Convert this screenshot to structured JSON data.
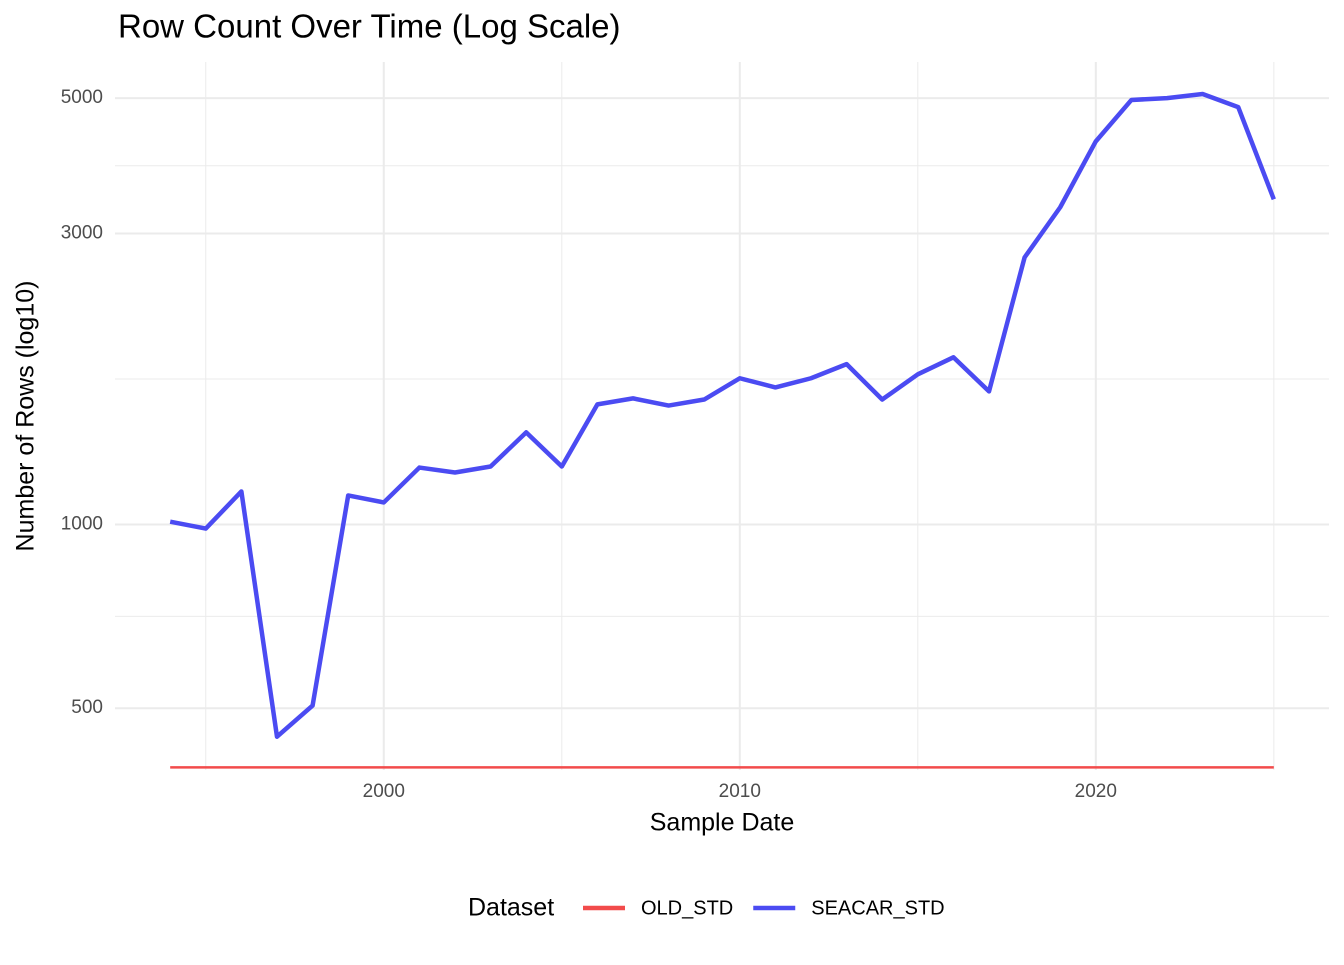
{
  "chart_data": {
    "type": "line",
    "title": "Row Count Over Time (Log Scale)",
    "x_label": "Sample Date",
    "y_label": "Number of Rows (log10)",
    "legend_title": "Dataset",
    "legend_position": "bottom",
    "log_y": true,
    "grid": true,
    "x": [
      1994,
      1995,
      1996,
      1997,
      1998,
      1999,
      2000,
      2001,
      2002,
      2003,
      2004,
      2005,
      2006,
      2007,
      2008,
      2009,
      2010,
      2011,
      2012,
      2013,
      2014,
      2015,
      2016,
      2017,
      2018,
      2019,
      2020,
      2021,
      2022,
      2023,
      2024,
      2025
    ],
    "series": [
      {
        "name": "OLD_STD",
        "color": "#f24b4b",
        "values": [
          400,
          400,
          400,
          400,
          400,
          400,
          400,
          400,
          400,
          400,
          400,
          400,
          400,
          400,
          400,
          400,
          400,
          400,
          400,
          400,
          400,
          400,
          400,
          400,
          400,
          400,
          400,
          400,
          400,
          400,
          400,
          400
        ]
      },
      {
        "name": "SEACAR_STD",
        "color": "#4b4bf2",
        "values": [
          1011,
          985,
          1133,
          449,
          505,
          1116,
          1087,
          1240,
          1217,
          1245,
          1416,
          1245,
          1574,
          1610,
          1567,
          1603,
          1737,
          1678,
          1737,
          1832,
          1603,
          1763,
          1880,
          1653,
          2741,
          3312,
          4247,
          4965,
          5000,
          5078,
          4833,
          3413
        ]
      }
    ],
    "xlim": [
      1992.45,
      2026.55
    ],
    "xticks": [
      2000,
      2010,
      2020
    ],
    "ylim": [
      396,
      5730
    ],
    "yticks": [
      500,
      1000,
      3000,
      5000
    ]
  }
}
